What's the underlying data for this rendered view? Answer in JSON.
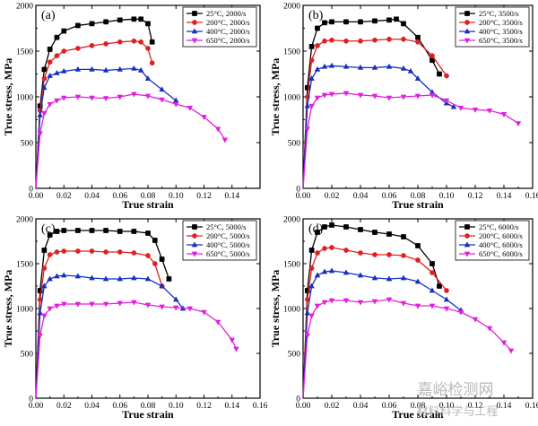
{
  "chart_data": [
    {
      "type": "line",
      "panel_label": "(a)",
      "xlabel": "True strain",
      "ylabel": "True stress, MPa",
      "xlim": [
        0,
        0.16
      ],
      "ylim": [
        0,
        2000
      ],
      "xticks": [
        "0.00",
        "0.02",
        "0.04",
        "0.06",
        "0.08",
        "0.10",
        "0.12",
        "0.14"
      ],
      "yticks": [
        "0",
        "500",
        "1000",
        "1500",
        "2000"
      ],
      "series": [
        {
          "name": "25°C, 2000/s",
          "color": "#000000",
          "marker": "square",
          "x": [
            0,
            0.003,
            0.006,
            0.01,
            0.015,
            0.02,
            0.03,
            0.04,
            0.05,
            0.06,
            0.07,
            0.075,
            0.08,
            0.083
          ],
          "y": [
            0,
            900,
            1300,
            1520,
            1650,
            1720,
            1780,
            1800,
            1820,
            1840,
            1850,
            1850,
            1800,
            1600
          ]
        },
        {
          "name": "200°C, 2000/s",
          "color": "#e02020",
          "marker": "circle",
          "x": [
            0,
            0.003,
            0.006,
            0.01,
            0.015,
            0.02,
            0.03,
            0.04,
            0.05,
            0.06,
            0.07,
            0.075,
            0.08,
            0.083
          ],
          "y": [
            0,
            850,
            1200,
            1380,
            1450,
            1500,
            1530,
            1560,
            1580,
            1600,
            1610,
            1600,
            1530,
            1370
          ]
        },
        {
          "name": "400°C, 2000/s",
          "color": "#1530c0",
          "marker": "triangle-up",
          "x": [
            0,
            0.003,
            0.006,
            0.01,
            0.015,
            0.02,
            0.03,
            0.04,
            0.05,
            0.06,
            0.07,
            0.075,
            0.08,
            0.09,
            0.1
          ],
          "y": [
            0,
            800,
            1100,
            1230,
            1260,
            1280,
            1300,
            1300,
            1290,
            1300,
            1310,
            1290,
            1200,
            1080,
            960
          ]
        },
        {
          "name": "650°C, 2000/s",
          "color": "#e020e0",
          "marker": "triangle-down",
          "x": [
            0,
            0.003,
            0.006,
            0.01,
            0.015,
            0.02,
            0.03,
            0.04,
            0.05,
            0.06,
            0.07,
            0.08,
            0.09,
            0.1,
            0.11,
            0.12,
            0.13,
            0.135
          ],
          "y": [
            0,
            600,
            820,
            920,
            960,
            990,
            1000,
            990,
            985,
            1000,
            1030,
            1010,
            970,
            920,
            880,
            780,
            650,
            530
          ]
        }
      ]
    },
    {
      "type": "line",
      "panel_label": "(b)",
      "xlabel": "True strain",
      "ylabel": "True stress, MPa",
      "xlim": [
        0,
        0.16
      ],
      "ylim": [
        0,
        2000
      ],
      "xticks": [
        "0.00",
        "0.02",
        "0.04",
        "0.06",
        "0.08",
        "0.10",
        "0.12",
        "0.14",
        "0.16"
      ],
      "yticks": [
        "0",
        "500",
        "1000",
        "1500",
        "2000"
      ],
      "series": [
        {
          "name": "25°C, 3500/s",
          "color": "#000000",
          "marker": "square",
          "x": [
            0,
            0.003,
            0.006,
            0.01,
            0.015,
            0.02,
            0.03,
            0.04,
            0.05,
            0.06,
            0.065,
            0.07,
            0.08,
            0.09,
            0.095
          ],
          "y": [
            0,
            1100,
            1550,
            1750,
            1810,
            1820,
            1820,
            1820,
            1830,
            1840,
            1850,
            1800,
            1650,
            1400,
            1250
          ]
        },
        {
          "name": "200°C, 3500/s",
          "color": "#e02020",
          "marker": "circle",
          "x": [
            0,
            0.003,
            0.006,
            0.01,
            0.015,
            0.02,
            0.03,
            0.04,
            0.05,
            0.06,
            0.07,
            0.08,
            0.09,
            0.1
          ],
          "y": [
            0,
            1000,
            1400,
            1560,
            1610,
            1620,
            1610,
            1610,
            1620,
            1630,
            1630,
            1600,
            1450,
            1230
          ]
        },
        {
          "name": "400°C, 3500/s",
          "color": "#1530c0",
          "marker": "triangle-up",
          "x": [
            0,
            0.003,
            0.006,
            0.01,
            0.015,
            0.02,
            0.03,
            0.04,
            0.05,
            0.06,
            0.07,
            0.075,
            0.08,
            0.09,
            0.1,
            0.105
          ],
          "y": [
            0,
            900,
            1200,
            1300,
            1330,
            1340,
            1330,
            1320,
            1320,
            1330,
            1310,
            1280,
            1200,
            1050,
            930,
            890
          ]
        },
        {
          "name": "650°C, 3500/s",
          "color": "#e020e0",
          "marker": "triangle-down",
          "x": [
            0,
            0.003,
            0.006,
            0.01,
            0.015,
            0.02,
            0.03,
            0.04,
            0.05,
            0.06,
            0.07,
            0.08,
            0.09,
            0.1,
            0.11,
            0.12,
            0.13,
            0.14,
            0.15
          ],
          "y": [
            0,
            650,
            900,
            990,
            1020,
            1030,
            1040,
            1020,
            1010,
            990,
            1000,
            1010,
            1020,
            960,
            880,
            860,
            850,
            810,
            710
          ]
        }
      ]
    },
    {
      "type": "line",
      "panel_label": "(c)",
      "xlabel": "True strain",
      "ylabel": "True stress, MPa",
      "xlim": [
        0,
        0.16
      ],
      "ylim": [
        0,
        2000
      ],
      "xticks": [
        "0.00",
        "0.02",
        "0.04",
        "0.06",
        "0.08",
        "0.10",
        "0.12",
        "0.14",
        "0.16"
      ],
      "yticks": [
        "0",
        "500",
        "1000",
        "1500",
        "2000"
      ],
      "series": [
        {
          "name": "25°C, 5000/s",
          "color": "#000000",
          "marker": "square",
          "x": [
            0,
            0.003,
            0.006,
            0.01,
            0.015,
            0.02,
            0.03,
            0.04,
            0.05,
            0.06,
            0.07,
            0.08,
            0.085,
            0.09,
            0.095
          ],
          "y": [
            0,
            1200,
            1650,
            1820,
            1860,
            1870,
            1870,
            1870,
            1870,
            1860,
            1860,
            1840,
            1760,
            1550,
            1330
          ]
        },
        {
          "name": "200°C, 5000/s",
          "color": "#e02020",
          "marker": "circle",
          "x": [
            0,
            0.003,
            0.006,
            0.01,
            0.015,
            0.02,
            0.03,
            0.04,
            0.05,
            0.06,
            0.07,
            0.08,
            0.085,
            0.09
          ],
          "y": [
            0,
            1100,
            1450,
            1600,
            1630,
            1640,
            1640,
            1640,
            1630,
            1630,
            1620,
            1590,
            1500,
            1250
          ]
        },
        {
          "name": "400°C, 5000/s",
          "color": "#1530c0",
          "marker": "triangle-up",
          "x": [
            0,
            0.003,
            0.006,
            0.01,
            0.015,
            0.02,
            0.03,
            0.04,
            0.05,
            0.06,
            0.07,
            0.08,
            0.09,
            0.1,
            0.105
          ],
          "y": [
            0,
            950,
            1250,
            1330,
            1360,
            1370,
            1360,
            1340,
            1330,
            1330,
            1340,
            1330,
            1250,
            1100,
            1000
          ]
        },
        {
          "name": "650°C, 5000/s",
          "color": "#e020e0",
          "marker": "triangle-down",
          "x": [
            0,
            0.003,
            0.006,
            0.01,
            0.015,
            0.02,
            0.03,
            0.04,
            0.05,
            0.06,
            0.07,
            0.08,
            0.09,
            0.1,
            0.11,
            0.12,
            0.13,
            0.14,
            0.143
          ],
          "y": [
            0,
            700,
            920,
            1000,
            1030,
            1050,
            1050,
            1050,
            1050,
            1060,
            1070,
            1040,
            1020,
            1010,
            1000,
            960,
            850,
            650,
            550
          ]
        }
      ]
    },
    {
      "type": "line",
      "panel_label": "(d)",
      "xlabel": "True strain",
      "ylabel": "True stress, MPa",
      "xlim": [
        0,
        0.16
      ],
      "ylim": [
        0,
        2000
      ],
      "xticks": [
        "0.00",
        "0.02",
        "0.04",
        "0.06",
        "0.08",
        "0.10",
        "0.12",
        "0.14",
        "0.16"
      ],
      "yticks": [
        "0",
        "500",
        "1000",
        "1500",
        "2000"
      ],
      "series": [
        {
          "name": "25°C, 6000/s",
          "color": "#000000",
          "marker": "square",
          "x": [
            0,
            0.003,
            0.006,
            0.01,
            0.015,
            0.02,
            0.03,
            0.04,
            0.05,
            0.06,
            0.07,
            0.08,
            0.09,
            0.095
          ],
          "y": [
            0,
            1200,
            1650,
            1850,
            1910,
            1930,
            1910,
            1880,
            1850,
            1830,
            1800,
            1700,
            1500,
            1250
          ]
        },
        {
          "name": "200°C, 6000/s",
          "color": "#e02020",
          "marker": "circle",
          "x": [
            0,
            0.003,
            0.006,
            0.01,
            0.015,
            0.02,
            0.03,
            0.04,
            0.05,
            0.06,
            0.07,
            0.08,
            0.09,
            0.1
          ],
          "y": [
            0,
            1100,
            1450,
            1620,
            1670,
            1680,
            1650,
            1620,
            1600,
            1600,
            1590,
            1540,
            1400,
            1200
          ]
        },
        {
          "name": "400°C, 6000/s",
          "color": "#1530c0",
          "marker": "triangle-up",
          "x": [
            0,
            0.003,
            0.006,
            0.01,
            0.015,
            0.02,
            0.03,
            0.04,
            0.05,
            0.06,
            0.07,
            0.08,
            0.09,
            0.1,
            0.11
          ],
          "y": [
            0,
            950,
            1250,
            1370,
            1410,
            1420,
            1400,
            1370,
            1340,
            1330,
            1340,
            1300,
            1200,
            1100,
            980
          ]
        },
        {
          "name": "650°C, 6000/s",
          "color": "#e020e0",
          "marker": "triangle-down",
          "x": [
            0,
            0.003,
            0.006,
            0.01,
            0.015,
            0.02,
            0.03,
            0.04,
            0.05,
            0.06,
            0.07,
            0.08,
            0.09,
            0.1,
            0.11,
            0.12,
            0.13,
            0.14,
            0.145
          ],
          "y": [
            0,
            700,
            920,
            1030,
            1070,
            1090,
            1090,
            1070,
            1080,
            1100,
            1060,
            1030,
            1030,
            1000,
            960,
            880,
            780,
            620,
            530
          ]
        }
      ]
    }
  ],
  "watermark": {
    "line1": "嘉峪检测网",
    "line2": "材料科学与工程"
  }
}
